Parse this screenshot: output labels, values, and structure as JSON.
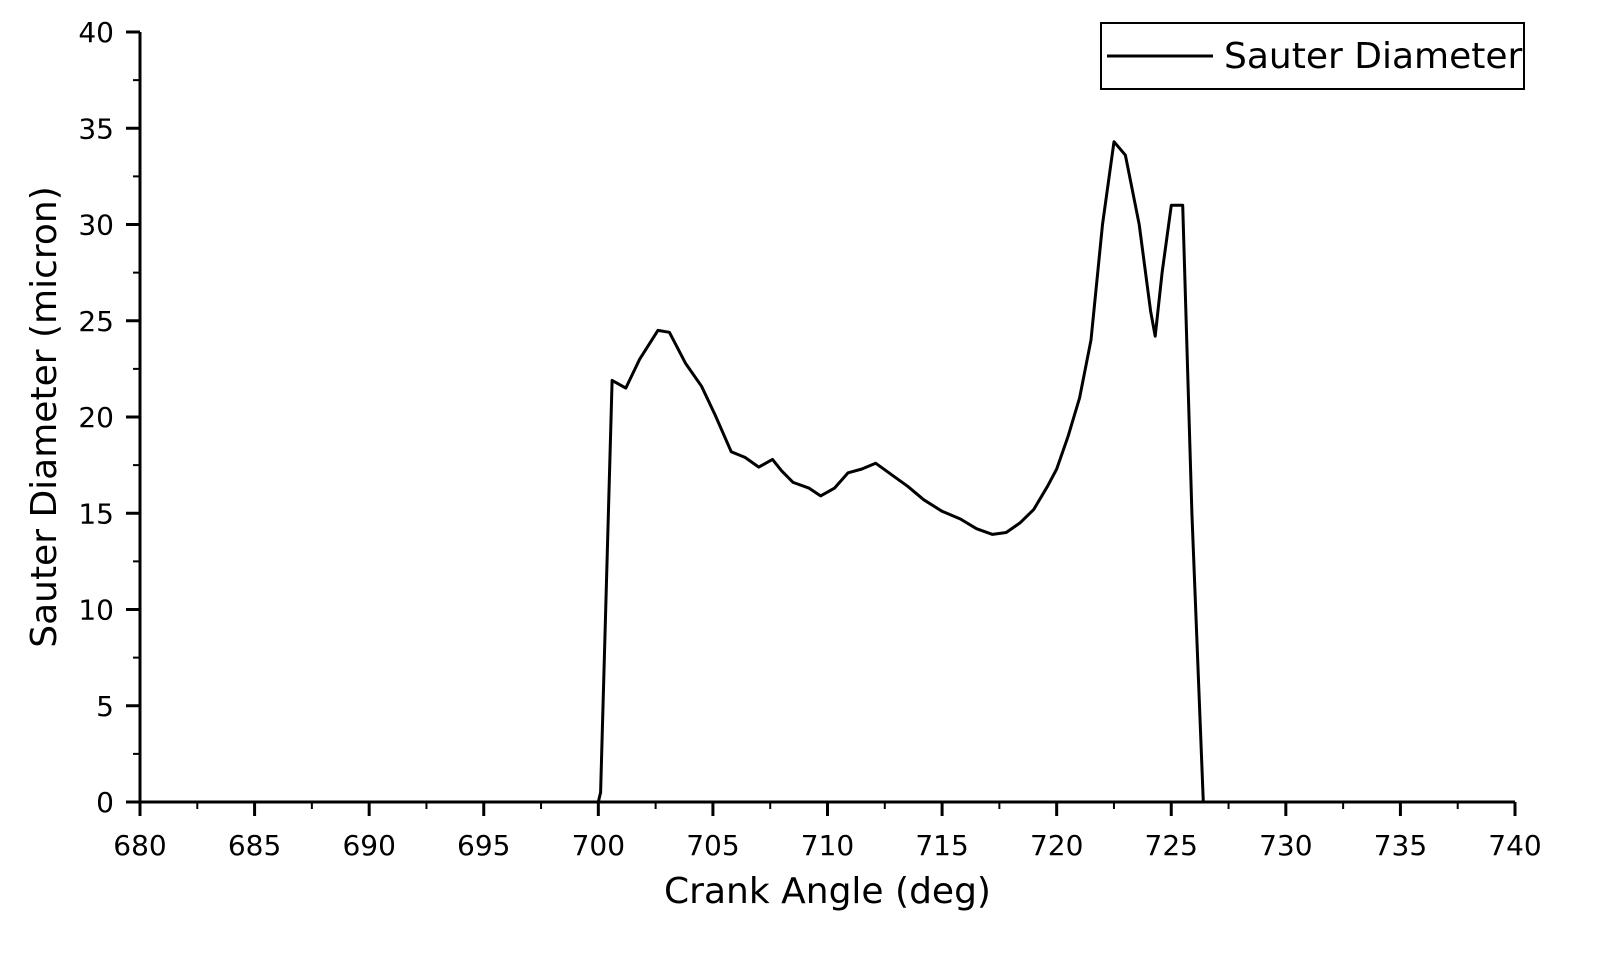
{
  "chart_data": {
    "type": "line",
    "xlabel": "Crank Angle (deg)",
    "ylabel": "Sauter Diameter (micron)",
    "xlim": [
      680,
      740
    ],
    "ylim": [
      0,
      40
    ],
    "x_ticks": [
      680,
      685,
      690,
      695,
      700,
      705,
      710,
      715,
      720,
      725,
      730,
      735,
      740
    ],
    "y_ticks": [
      0,
      5,
      10,
      15,
      20,
      25,
      30,
      35,
      40
    ],
    "x_tick_labels": [
      "680",
      "685",
      "690",
      "695",
      "700",
      "705",
      "710",
      "715",
      "720",
      "725",
      "730",
      "735",
      "740"
    ],
    "y_tick_labels": [
      "0",
      "5",
      "10",
      "15",
      "20",
      "25",
      "30",
      "35",
      "40"
    ],
    "grid": false,
    "legend": {
      "position": "top-right",
      "entries": [
        "Sauter Diameter"
      ]
    },
    "series": [
      {
        "name": "Sauter Diameter",
        "color": "#000000",
        "x": [
          680,
          700,
          700.1,
          700.6,
          701.2,
          701.8,
          702.6,
          703.1,
          703.8,
          704.5,
          705.1,
          705.8,
          706.4,
          707.0,
          707.6,
          708.0,
          708.5,
          709.2,
          709.7,
          710.3,
          710.9,
          711.5,
          712.1,
          712.8,
          713.5,
          714.2,
          715.0,
          715.8,
          716.5,
          717.2,
          717.8,
          718.4,
          719.0,
          719.6,
          720.0,
          720.5,
          721.0,
          721.5,
          722.0,
          722.5,
          723.0,
          723.6,
          724.1,
          724.3,
          724.6,
          725.0,
          725.3,
          725.5,
          725.9,
          726.4,
          740
        ],
        "y": [
          0,
          0,
          0.5,
          21.9,
          21.5,
          23.0,
          24.5,
          24.4,
          22.8,
          21.6,
          20.1,
          18.2,
          17.9,
          17.4,
          17.8,
          17.2,
          16.6,
          16.3,
          15.9,
          16.3,
          17.1,
          17.3,
          17.6,
          17.0,
          16.4,
          15.7,
          15.1,
          14.7,
          14.2,
          13.9,
          14.0,
          14.5,
          15.2,
          16.4,
          17.3,
          19.0,
          21.0,
          24.0,
          30.0,
          34.3,
          33.6,
          30.0,
          25.5,
          24.2,
          27.5,
          31.0,
          31.0,
          31.0,
          15.0,
          0,
          0
        ]
      }
    ]
  }
}
